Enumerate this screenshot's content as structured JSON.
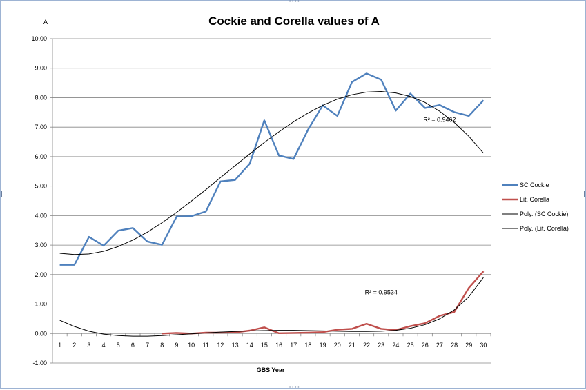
{
  "chart_data": {
    "type": "line",
    "title": "Cockie and Corella values of A",
    "ylabel": "A",
    "xlabel": "GBS Year",
    "ylim": [
      -1.0,
      10.0
    ],
    "ytick_step": 1.0,
    "yticks": [
      "-1.00",
      "0.00",
      "1.00",
      "2.00",
      "3.00",
      "4.00",
      "5.00",
      "6.00",
      "7.00",
      "8.00",
      "9.00",
      "10.00"
    ],
    "categories": [
      "1",
      "2",
      "3",
      "4",
      "5",
      "6",
      "7",
      "8",
      "9",
      "10",
      "11",
      "12",
      "13",
      "14",
      "15",
      "16",
      "17",
      "18",
      "19",
      "20",
      "21",
      "22",
      "23",
      "24",
      "25",
      "26",
      "27",
      "28",
      "29",
      "30"
    ],
    "grid": "horizontal",
    "legend_position": "right",
    "series": [
      {
        "name": "SC Cockie",
        "color": "#4f81bd",
        "values": [
          2.33,
          2.33,
          3.28,
          2.98,
          3.49,
          3.58,
          3.12,
          3.01,
          3.97,
          3.98,
          4.14,
          5.16,
          5.21,
          5.76,
          7.23,
          6.04,
          5.92,
          6.92,
          7.74,
          7.38,
          8.53,
          8.82,
          8.61,
          7.56,
          8.14,
          7.65,
          7.75,
          7.51,
          7.38,
          7.91
        ]
      },
      {
        "name": "Lit. Corella",
        "color": "#c0504d",
        "values": [
          null,
          null,
          null,
          null,
          null,
          null,
          null,
          0.0,
          0.02,
          0.0,
          0.03,
          0.03,
          0.04,
          0.1,
          0.21,
          0.01,
          0.02,
          0.03,
          0.05,
          0.13,
          0.16,
          0.33,
          0.16,
          0.12,
          0.25,
          0.35,
          0.6,
          0.73,
          1.55,
          2.11
        ]
      },
      {
        "name": "Poly. (SC Cockie)",
        "color": "#000000",
        "values": [
          2.72,
          2.68,
          2.7,
          2.79,
          2.95,
          3.17,
          3.44,
          3.76,
          4.11,
          4.49,
          4.88,
          5.29,
          5.69,
          6.09,
          6.48,
          6.84,
          7.18,
          7.48,
          7.74,
          7.95,
          8.1,
          8.19,
          8.21,
          8.16,
          8.04,
          7.84,
          7.54,
          7.16,
          6.69,
          6.12
        ]
      },
      {
        "name": "Poly. (Lit. Corella)",
        "color": "#000000",
        "values": [
          0.45,
          0.24,
          0.08,
          -0.02,
          -0.07,
          -0.09,
          -0.09,
          -0.07,
          -0.04,
          -0.01,
          0.02,
          0.05,
          0.07,
          0.09,
          0.1,
          0.11,
          0.11,
          0.1,
          0.09,
          0.08,
          0.07,
          0.07,
          0.08,
          0.11,
          0.18,
          0.3,
          0.5,
          0.8,
          1.25,
          1.9
        ]
      }
    ],
    "annotations": [
      {
        "text": "R² = 0.9462",
        "series": "Poly. (SC Cockie)",
        "x": 27,
        "y": 7.25
      },
      {
        "text": "R² = 0.9534",
        "series": "Poly. (Lit. Corella)",
        "x": 23,
        "y": 1.4
      }
    ]
  }
}
